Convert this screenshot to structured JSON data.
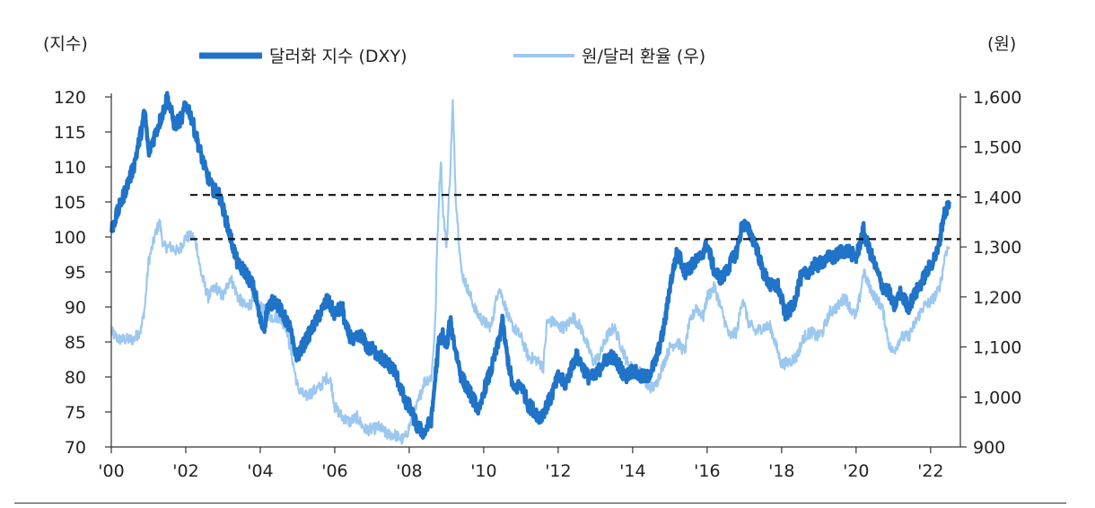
{
  "chart_data": {
    "type": "line",
    "left_axis": {
      "unit": "(지수)",
      "ylim": [
        70,
        120
      ],
      "ticks": [
        70,
        75,
        80,
        85,
        90,
        95,
        100,
        105,
        110,
        115,
        120
      ]
    },
    "right_axis": {
      "unit": "(원)",
      "ylim": [
        900,
        1600
      ],
      "ticks": [
        "900",
        "1,000",
        "1,100",
        "1,200",
        "1,300",
        "1,400",
        "1,500",
        "1,600"
      ]
    },
    "x_axis": {
      "range": [
        2000,
        2022.8
      ],
      "ticks": [
        "'00",
        "'02",
        "'04",
        "'06",
        "'08",
        "'10",
        "'12",
        "'14",
        "'16",
        "'18",
        "'20",
        "'22"
      ]
    },
    "legend_position": "top",
    "reference_lines": [
      {
        "axis": "left",
        "value": 106,
        "style": "dashed"
      },
      {
        "axis": "left",
        "value": 99.7,
        "style": "dashed"
      }
    ],
    "series": [
      {
        "name": "달러화 지수 (DXY)",
        "axis": "left",
        "color": "#1f73c8",
        "points": [
          [
            2000.0,
            101
          ],
          [
            2000.2,
            104
          ],
          [
            2000.4,
            107
          ],
          [
            2000.6,
            110
          ],
          [
            2000.8,
            115
          ],
          [
            2000.9,
            118
          ],
          [
            2001.0,
            112
          ],
          [
            2001.2,
            115
          ],
          [
            2001.4,
            118
          ],
          [
            2001.5,
            120
          ],
          [
            2001.7,
            116
          ],
          [
            2001.9,
            117
          ],
          [
            2002.0,
            119
          ],
          [
            2002.1,
            118
          ],
          [
            2002.3,
            114
          ],
          [
            2002.5,
            110
          ],
          [
            2002.7,
            107
          ],
          [
            2002.9,
            106
          ],
          [
            2003.0,
            104
          ],
          [
            2003.2,
            100
          ],
          [
            2003.4,
            96
          ],
          [
            2003.6,
            95
          ],
          [
            2003.8,
            93
          ],
          [
            2003.9,
            91
          ],
          [
            2004.0,
            88
          ],
          [
            2004.1,
            87
          ],
          [
            2004.2,
            90
          ],
          [
            2004.4,
            91
          ],
          [
            2004.6,
            89
          ],
          [
            2004.8,
            87
          ],
          [
            2004.9,
            84
          ],
          [
            2005.0,
            83
          ],
          [
            2005.2,
            85
          ],
          [
            2005.4,
            87
          ],
          [
            2005.6,
            89
          ],
          [
            2005.8,
            91
          ],
          [
            2005.9,
            90
          ],
          [
            2006.0,
            89
          ],
          [
            2006.2,
            90
          ],
          [
            2006.3,
            87
          ],
          [
            2006.5,
            85
          ],
          [
            2006.7,
            86
          ],
          [
            2006.9,
            84
          ],
          [
            2007.0,
            84
          ],
          [
            2007.2,
            83
          ],
          [
            2007.4,
            82
          ],
          [
            2007.6,
            81
          ],
          [
            2007.8,
            78
          ],
          [
            2007.9,
            76
          ],
          [
            2008.0,
            76
          ],
          [
            2008.2,
            73
          ],
          [
            2008.4,
            72
          ],
          [
            2008.6,
            74
          ],
          [
            2008.7,
            80
          ],
          [
            2008.8,
            85
          ],
          [
            2008.9,
            86
          ],
          [
            2009.0,
            84
          ],
          [
            2009.1,
            88
          ],
          [
            2009.2,
            85
          ],
          [
            2009.4,
            80
          ],
          [
            2009.6,
            78
          ],
          [
            2009.8,
            76
          ],
          [
            2009.9,
            75
          ],
          [
            2010.0,
            78
          ],
          [
            2010.2,
            81
          ],
          [
            2010.4,
            85
          ],
          [
            2010.5,
            88
          ],
          [
            2010.6,
            84
          ],
          [
            2010.8,
            78
          ],
          [
            2011.0,
            79
          ],
          [
            2011.2,
            76
          ],
          [
            2011.4,
            75
          ],
          [
            2011.5,
            74
          ],
          [
            2011.6,
            75
          ],
          [
            2011.8,
            77
          ],
          [
            2012.0,
            80
          ],
          [
            2012.2,
            79
          ],
          [
            2012.4,
            82
          ],
          [
            2012.5,
            83
          ],
          [
            2012.6,
            82
          ],
          [
            2012.8,
            80
          ],
          [
            2013.0,
            80
          ],
          [
            2013.2,
            82
          ],
          [
            2013.4,
            83
          ],
          [
            2013.6,
            82
          ],
          [
            2013.8,
            80
          ],
          [
            2014.0,
            81
          ],
          [
            2014.2,
            80
          ],
          [
            2014.4,
            80
          ],
          [
            2014.6,
            82
          ],
          [
            2014.8,
            86
          ],
          [
            2014.9,
            89
          ],
          [
            2015.0,
            93
          ],
          [
            2015.2,
            98
          ],
          [
            2015.4,
            95
          ],
          [
            2015.6,
            96
          ],
          [
            2015.8,
            97
          ],
          [
            2016.0,
            99
          ],
          [
            2016.2,
            95
          ],
          [
            2016.4,
            94
          ],
          [
            2016.6,
            96
          ],
          [
            2016.8,
            98
          ],
          [
            2016.95,
            102
          ],
          [
            2017.1,
            101
          ],
          [
            2017.3,
            99
          ],
          [
            2017.5,
            95
          ],
          [
            2017.7,
            93
          ],
          [
            2017.9,
            93
          ],
          [
            2018.0,
            91
          ],
          [
            2018.1,
            89
          ],
          [
            2018.3,
            90
          ],
          [
            2018.5,
            94
          ],
          [
            2018.7,
            95
          ],
          [
            2018.9,
            96
          ],
          [
            2019.0,
            96
          ],
          [
            2019.2,
            97
          ],
          [
            2019.4,
            97
          ],
          [
            2019.6,
            98
          ],
          [
            2019.8,
            98
          ],
          [
            2020.0,
            97
          ],
          [
            2020.2,
            101
          ],
          [
            2020.3,
            99
          ],
          [
            2020.5,
            96
          ],
          [
            2020.7,
            93
          ],
          [
            2020.9,
            92
          ],
          [
            2021.0,
            90
          ],
          [
            2021.2,
            92
          ],
          [
            2021.4,
            90
          ],
          [
            2021.6,
            92
          ],
          [
            2021.8,
            94
          ],
          [
            2022.0,
            96
          ],
          [
            2022.2,
            98
          ],
          [
            2022.35,
            103
          ],
          [
            2022.5,
            105
          ]
        ]
      },
      {
        "name": "원/달러 환율 (우)",
        "axis": "right",
        "color": "#9cc8ef",
        "points": [
          [
            2000.0,
            1130
          ],
          [
            2000.2,
            1115
          ],
          [
            2000.4,
            1115
          ],
          [
            2000.6,
            1115
          ],
          [
            2000.8,
            1135
          ],
          [
            2000.9,
            1180
          ],
          [
            2001.0,
            1270
          ],
          [
            2001.1,
            1300
          ],
          [
            2001.2,
            1330
          ],
          [
            2001.3,
            1350
          ],
          [
            2001.4,
            1300
          ],
          [
            2001.6,
            1300
          ],
          [
            2001.8,
            1290
          ],
          [
            2002.0,
            1320
          ],
          [
            2002.2,
            1320
          ],
          [
            2002.3,
            1300
          ],
          [
            2002.4,
            1250
          ],
          [
            2002.6,
            1200
          ],
          [
            2002.8,
            1220
          ],
          [
            2003.0,
            1200
          ],
          [
            2003.2,
            1240
          ],
          [
            2003.4,
            1200
          ],
          [
            2003.6,
            1180
          ],
          [
            2003.8,
            1190
          ],
          [
            2004.0,
            1180
          ],
          [
            2004.3,
            1160
          ],
          [
            2004.5,
            1160
          ],
          [
            2004.7,
            1140
          ],
          [
            2004.9,
            1060
          ],
          [
            2005.0,
            1020
          ],
          [
            2005.2,
            1000
          ],
          [
            2005.4,
            1010
          ],
          [
            2005.6,
            1020
          ],
          [
            2005.8,
            1040
          ],
          [
            2005.9,
            1030
          ],
          [
            2006.0,
            980
          ],
          [
            2006.2,
            960
          ],
          [
            2006.4,
            950
          ],
          [
            2006.6,
            960
          ],
          [
            2006.8,
            935
          ],
          [
            2007.0,
            935
          ],
          [
            2007.2,
            940
          ],
          [
            2007.4,
            925
          ],
          [
            2007.6,
            925
          ],
          [
            2007.8,
            915
          ],
          [
            2007.9,
            920
          ],
          [
            2008.0,
            940
          ],
          [
            2008.2,
            980
          ],
          [
            2008.4,
            1030
          ],
          [
            2008.6,
            1040
          ],
          [
            2008.7,
            1150
          ],
          [
            2008.75,
            1300
          ],
          [
            2008.8,
            1400
          ],
          [
            2008.85,
            1480
          ],
          [
            2008.9,
            1380
          ],
          [
            2009.0,
            1300
          ],
          [
            2009.1,
            1450
          ],
          [
            2009.17,
            1590
          ],
          [
            2009.25,
            1400
          ],
          [
            2009.4,
            1250
          ],
          [
            2009.6,
            1210
          ],
          [
            2009.8,
            1170
          ],
          [
            2010.0,
            1150
          ],
          [
            2010.2,
            1140
          ],
          [
            2010.4,
            1220
          ],
          [
            2010.5,
            1200
          ],
          [
            2010.7,
            1150
          ],
          [
            2010.9,
            1130
          ],
          [
            2011.0,
            1120
          ],
          [
            2011.2,
            1080
          ],
          [
            2011.4,
            1075
          ],
          [
            2011.6,
            1060
          ],
          [
            2011.7,
            1150
          ],
          [
            2011.9,
            1150
          ],
          [
            2012.0,
            1140
          ],
          [
            2012.2,
            1140
          ],
          [
            2012.4,
            1160
          ],
          [
            2012.6,
            1140
          ],
          [
            2012.8,
            1100
          ],
          [
            2012.95,
            1070
          ],
          [
            2013.1,
            1080
          ],
          [
            2013.3,
            1120
          ],
          [
            2013.5,
            1140
          ],
          [
            2013.7,
            1100
          ],
          [
            2013.9,
            1060
          ],
          [
            2014.0,
            1060
          ],
          [
            2014.2,
            1050
          ],
          [
            2014.4,
            1020
          ],
          [
            2014.6,
            1020
          ],
          [
            2014.8,
            1060
          ],
          [
            2015.0,
            1100
          ],
          [
            2015.2,
            1110
          ],
          [
            2015.4,
            1090
          ],
          [
            2015.5,
            1140
          ],
          [
            2015.7,
            1180
          ],
          [
            2015.9,
            1160
          ],
          [
            2016.0,
            1200
          ],
          [
            2016.2,
            1220
          ],
          [
            2016.4,
            1170
          ],
          [
            2016.6,
            1120
          ],
          [
            2016.8,
            1130
          ],
          [
            2016.95,
            1200
          ],
          [
            2017.1,
            1150
          ],
          [
            2017.3,
            1130
          ],
          [
            2017.5,
            1140
          ],
          [
            2017.7,
            1140
          ],
          [
            2017.9,
            1090
          ],
          [
            2018.0,
            1065
          ],
          [
            2018.2,
            1070
          ],
          [
            2018.4,
            1080
          ],
          [
            2018.6,
            1120
          ],
          [
            2018.8,
            1130
          ],
          [
            2018.95,
            1120
          ],
          [
            2019.1,
            1130
          ],
          [
            2019.3,
            1170
          ],
          [
            2019.5,
            1180
          ],
          [
            2019.7,
            1200
          ],
          [
            2019.9,
            1170
          ],
          [
            2020.0,
            1160
          ],
          [
            2020.1,
            1200
          ],
          [
            2020.2,
            1250
          ],
          [
            2020.3,
            1230
          ],
          [
            2020.5,
            1200
          ],
          [
            2020.7,
            1180
          ],
          [
            2020.9,
            1100
          ],
          [
            2021.0,
            1090
          ],
          [
            2021.2,
            1120
          ],
          [
            2021.4,
            1120
          ],
          [
            2021.6,
            1150
          ],
          [
            2021.8,
            1180
          ],
          [
            2022.0,
            1190
          ],
          [
            2022.2,
            1210
          ],
          [
            2022.3,
            1240
          ],
          [
            2022.4,
            1290
          ],
          [
            2022.5,
            1300
          ]
        ]
      }
    ]
  }
}
